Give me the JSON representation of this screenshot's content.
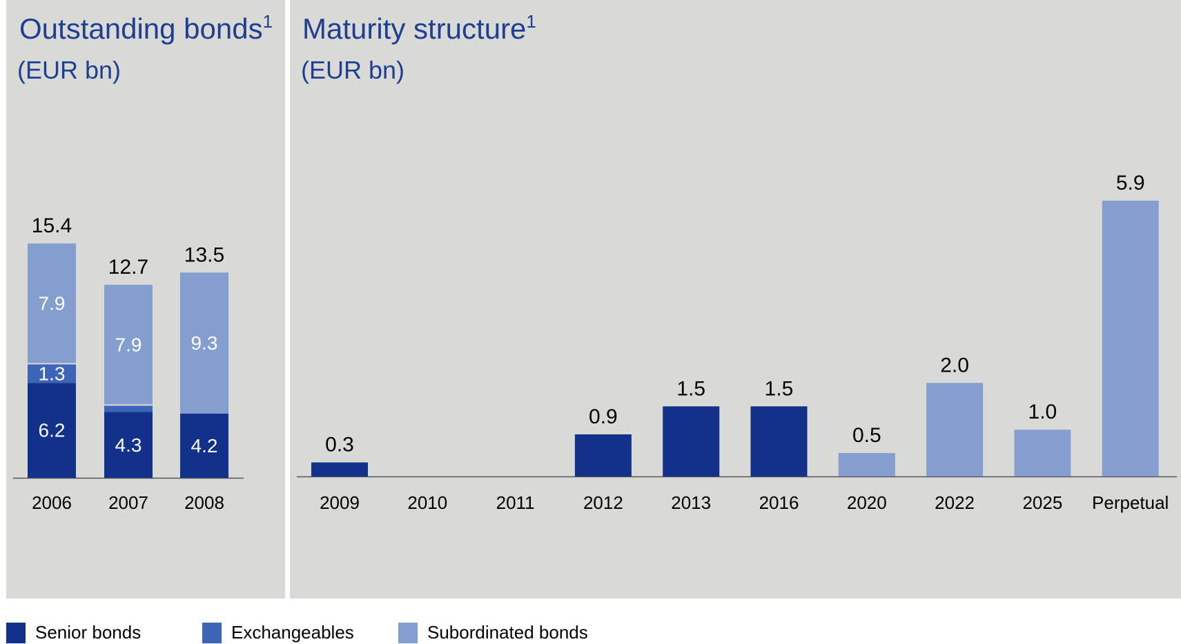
{
  "colors": {
    "senior": "#12318a",
    "exchangeables": "#3d65b7",
    "subordinated": "#849ecf",
    "title": "#1d3e93",
    "panel": "#d9d9d6"
  },
  "legend": [
    {
      "label": "Senior bonds",
      "color": "#12318a"
    },
    {
      "label": "Exchangeables",
      "color": "#3d65b7"
    },
    {
      "label": "Subordinated bonds",
      "color": "#849ecf"
    }
  ],
  "chart_data": [
    {
      "type": "bar",
      "stacked": true,
      "title": "Outstanding bonds",
      "title_superscript": "1",
      "unit": "(EUR bn)",
      "categories": [
        "2006",
        "2007",
        "2008"
      ],
      "series": [
        {
          "name": "Senior bonds",
          "key": "senior",
          "values": [
            6.2,
            4.3,
            4.2
          ]
        },
        {
          "name": "Exchangeables",
          "key": "exchangeables",
          "values": [
            1.3,
            0.5,
            0
          ]
        },
        {
          "name": "Subordinated bonds",
          "key": "subordinated",
          "values": [
            7.9,
            7.9,
            9.3
          ]
        }
      ],
      "totals": [
        15.4,
        12.7,
        13.5
      ],
      "segment_labels": [
        [
          "6.2",
          "1.3",
          "7.9"
        ],
        [
          "4.3",
          "0.5",
          "7.9"
        ],
        [
          "4.2",
          "",
          "9.3"
        ]
      ],
      "total_labels": [
        "15.4",
        "12.7",
        "13.5"
      ],
      "ylim": [
        0,
        16
      ],
      "grid": false
    },
    {
      "type": "bar",
      "title": "Maturity structure",
      "title_superscript": "1",
      "unit": "(EUR bn)",
      "categories": [
        "2009",
        "2010",
        "2011",
        "2012",
        "2013",
        "2016",
        "2020",
        "2022",
        "2025",
        "Perpetual"
      ],
      "values": [
        0.3,
        null,
        null,
        0.9,
        1.5,
        1.5,
        0.5,
        2.0,
        1.0,
        5.9
      ],
      "value_labels": [
        "0.3",
        "",
        "",
        "0.9",
        "1.5",
        "1.5",
        "0.5",
        "2.0",
        "1.0",
        "5.9"
      ],
      "bar_types": [
        "senior",
        null,
        null,
        "senior",
        "senior",
        "senior",
        "subordinated",
        "subordinated",
        "subordinated",
        "subordinated"
      ],
      "ylim": [
        0,
        6.5
      ],
      "grid": false
    }
  ]
}
